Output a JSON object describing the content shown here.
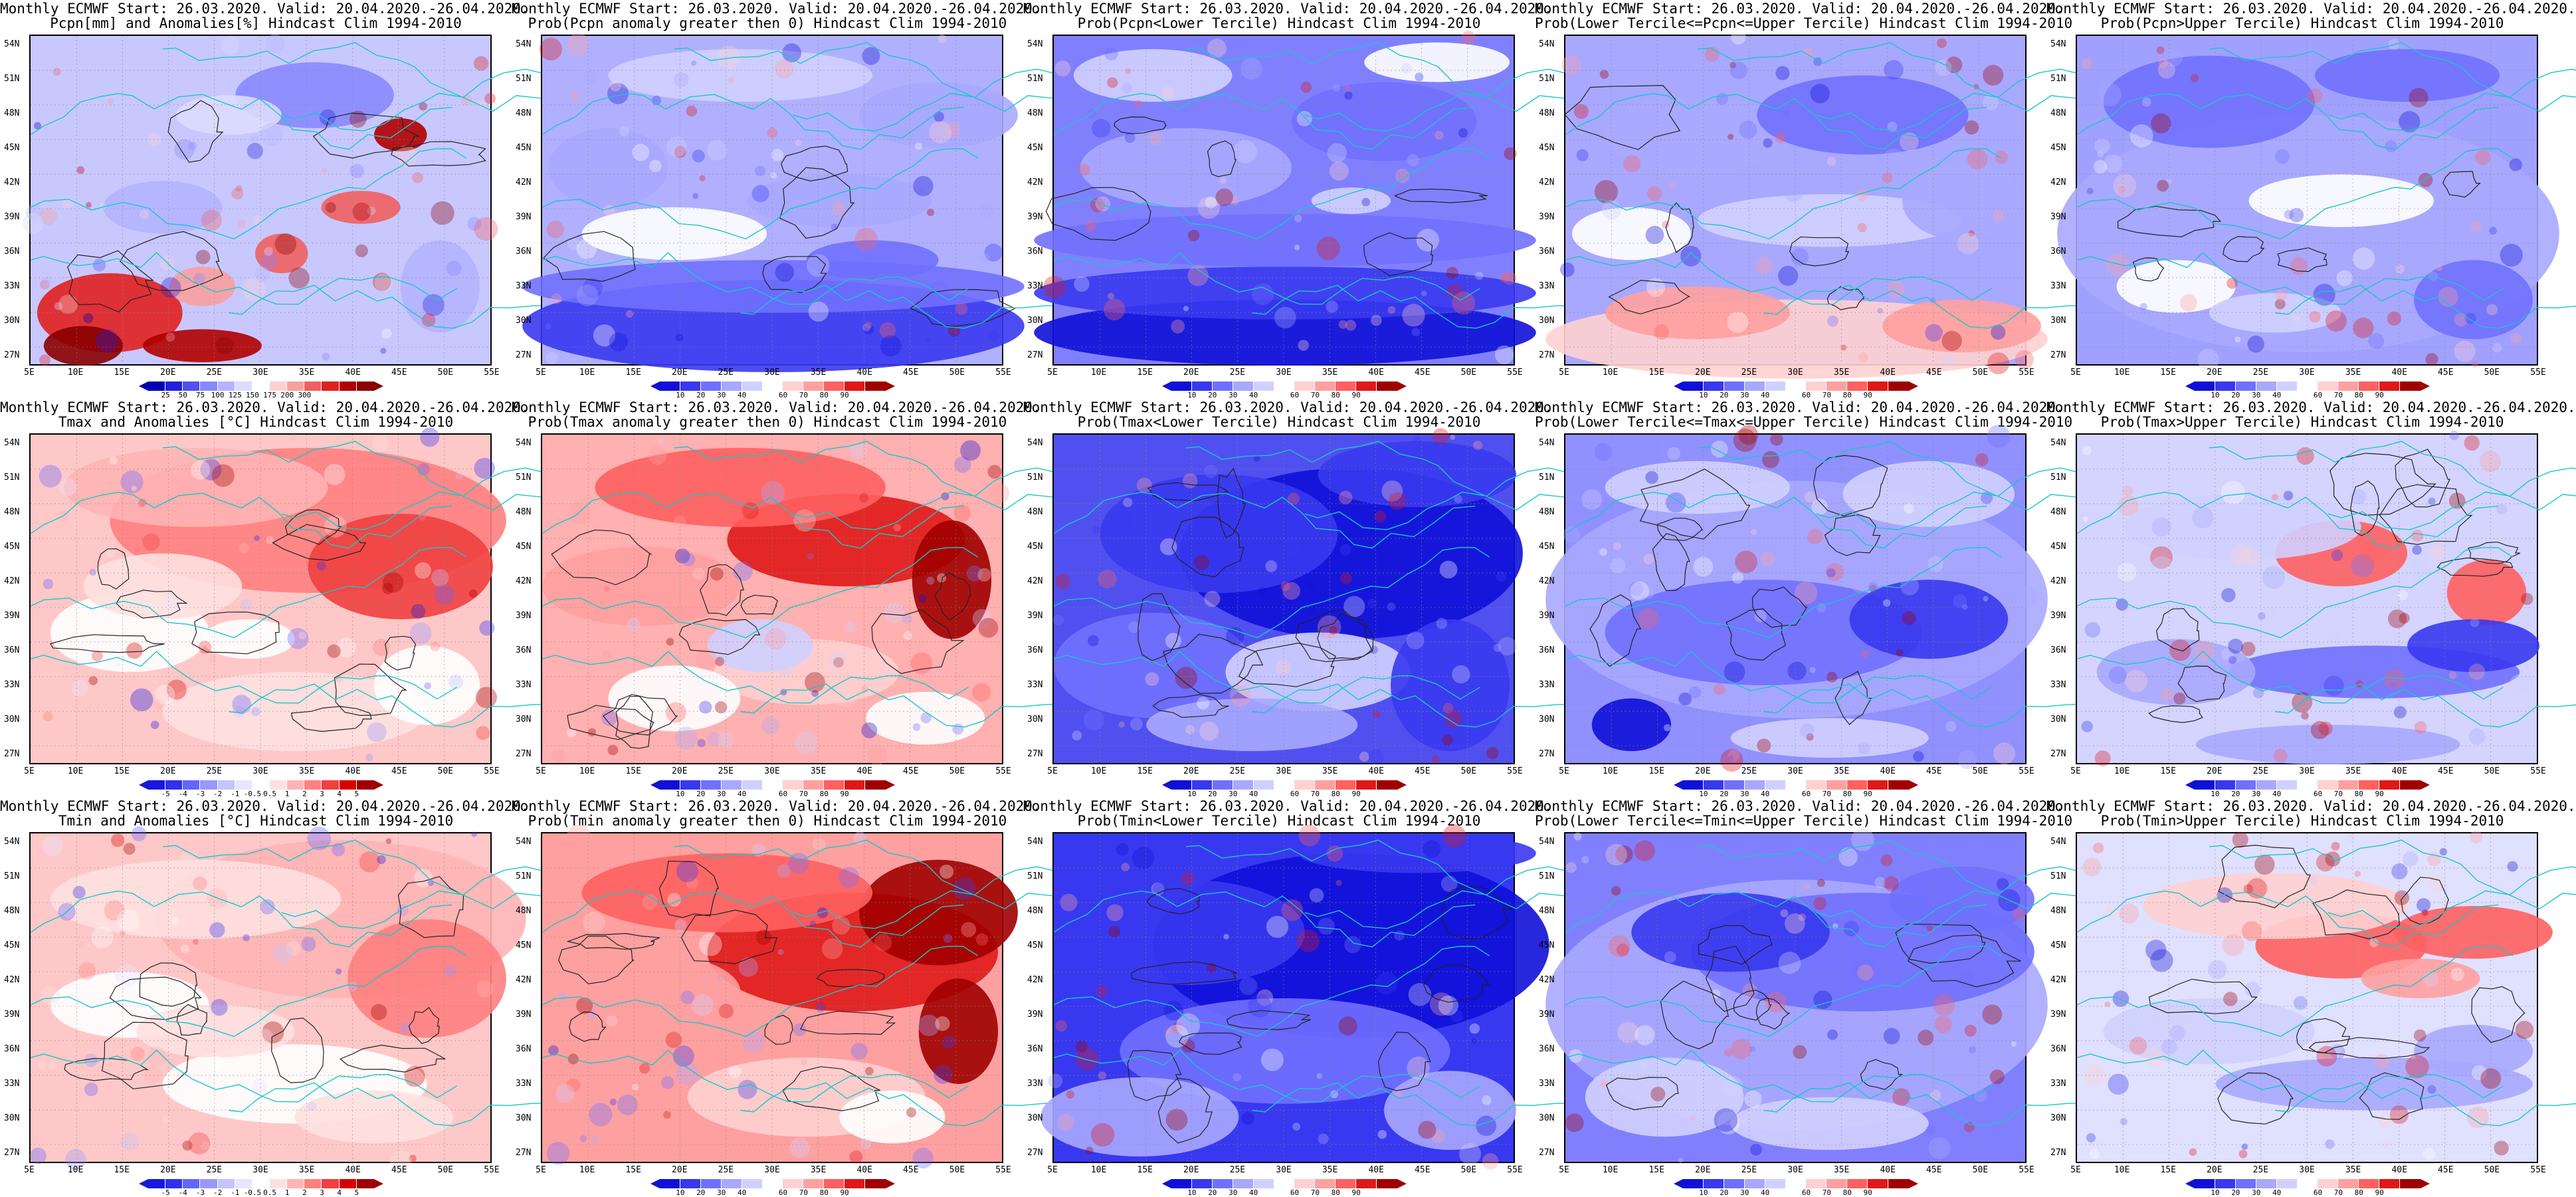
{
  "page": {
    "background": "#ffffff"
  },
  "lat_labels": [
    "54N",
    "51N",
    "48N",
    "45N",
    "42N",
    "39N",
    "36N",
    "33N",
    "30N",
    "27N"
  ],
  "lon_labels": [
    "5E",
    "10E",
    "15E",
    "20E",
    "25E",
    "30E",
    "35E",
    "40E",
    "45E",
    "50E",
    "55E"
  ],
  "palettes": {
    "precip": [
      "#8b0000",
      "#b00000",
      "#e02020",
      "#f06060",
      "#f8a0a0",
      "#fcd0d0",
      "#ffffff",
      "#dcdcff",
      "#b4b4ff",
      "#8888ff",
      "#5050f0",
      "#2020e0",
      "#0000b0"
    ],
    "anom": [
      "#1818e0",
      "#3030f0",
      "#6464ff",
      "#9898ff",
      "#c4c4ff",
      "#e6e6ff",
      "#ffffff",
      "#ffe0e0",
      "#ffb4b4",
      "#ff8080",
      "#f04040",
      "#d80000",
      "#a00000"
    ],
    "prob": [
      "#1010d8",
      "#3838f0",
      "#7070ff",
      "#a8a8ff",
      "#d0d0ff",
      "#ffffff",
      "#ffd0d0",
      "#ffa0a0",
      "#ff6060",
      "#e01818",
      "#a00000"
    ]
  },
  "panels": [
    {
      "id": "pcpn-anom",
      "title1": "Monthly ECMWF Start: 26.03.2020. Valid: 20.04.2020.-26.04.2020.",
      "title2": "Pcpn[mm] and Anomalies[%] Hindcast Clim 1994-2010",
      "palette": "precip",
      "labels": [
        "25",
        "50",
        "75",
        "100",
        "125",
        "150",
        "175",
        "200",
        "300"
      ],
      "field": "pcpn_anom",
      "bg": "#c8c8ff"
    },
    {
      "id": "pcpn-gt0",
      "title1": "Monthly ECMWF Start: 26.03.2020. Valid: 20.04.2020.-26.04.2020.",
      "title2": "Prob(Pcpn anomaly greater then 0) Hindcast Clim 1994-2010",
      "palette": "prob",
      "labels": [
        "10",
        "20",
        "30",
        "40",
        "60",
        "70",
        "80",
        "90"
      ],
      "field": "pcpn_prob",
      "bg": "#b0b0ff"
    },
    {
      "id": "pcpn-lower",
      "title1": "Monthly ECMWF Start: 26.03.2020. Valid: 20.04.2020.-26.04.2020.",
      "title2": "Prob(Pcpn<Lower Tercile) Hindcast Clim 1994-2010",
      "palette": "prob",
      "labels": [
        "10",
        "20",
        "30",
        "40",
        "60",
        "70",
        "80",
        "90"
      ],
      "field": "pcpn_lower",
      "bg": "#8080ff"
    },
    {
      "id": "pcpn-middle",
      "title1": "Monthly ECMWF Start: 26.03.2020. Valid: 20.04.2020.-26.04.2020.",
      "title2": "Prob(Lower Tercile<=Pcpn<=Upper Tercile) Hindcast Clim 1994-2010",
      "palette": "prob",
      "labels": [
        "10",
        "20",
        "30",
        "40",
        "60",
        "70",
        "80",
        "90"
      ],
      "field": "pcpn_mid",
      "bg": "#a8a8ff"
    },
    {
      "id": "pcpn-upper",
      "title1": "Monthly ECMWF Start: 26.03.2020. Valid: 20.04.2020.-26.04.2020.",
      "title2": "Prob(Pcpn>Upper Tercile) Hindcast Clim 1994-2010",
      "palette": "prob",
      "labels": [
        "10",
        "20",
        "30",
        "40",
        "60",
        "70",
        "80",
        "90"
      ],
      "field": "pcpn_upper",
      "bg": "#a0a0ff"
    },
    {
      "id": "tmax-anom",
      "title1": "Monthly ECMWF Start: 26.03.2020. Valid: 20.04.2020.-26.04.2020.",
      "title2": "Tmax and Anomalies [°C] Hindcast Clim 1994-2010",
      "palette": "anom",
      "labels": [
        "-5",
        "-4",
        "-3",
        "-2",
        "-1",
        "-0.5",
        "0.5",
        "1",
        "2",
        "3",
        "4",
        "5"
      ],
      "field": "tmax_anom",
      "bg": "#ffc8c8"
    },
    {
      "id": "tmax-gt0",
      "title1": "Monthly ECMWF Start: 26.03.2020. Valid: 20.04.2020.-26.04.2020.",
      "title2": "Prob(Tmax anomaly greater then 0) Hindcast Clim 1994-2010",
      "palette": "prob",
      "labels": [
        "10",
        "20",
        "30",
        "40",
        "60",
        "70",
        "80",
        "90"
      ],
      "field": "tmax_prob",
      "bg": "#ffb0b0"
    },
    {
      "id": "tmax-lower",
      "title1": "Monthly ECMWF Start: 26.03.2020. Valid: 20.04.2020.-26.04.2020.",
      "title2": "Prob(Tmax<Lower Tercile) Hindcast Clim 1994-2010",
      "palette": "prob",
      "labels": [
        "10",
        "20",
        "30",
        "40",
        "60",
        "70",
        "80",
        "90"
      ],
      "field": "tmax_lower",
      "bg": "#5050f0"
    },
    {
      "id": "tmax-middle",
      "title1": "Monthly ECMWF Start: 26.03.2020. Valid: 20.04.2020.-26.04.2020.",
      "title2": "Prob(Lower Tercile<=Tmax<=Upper Tercile) Hindcast Clim 1994-2010",
      "palette": "prob",
      "labels": [
        "10",
        "20",
        "30",
        "40",
        "60",
        "70",
        "80",
        "90"
      ],
      "field": "tmax_mid",
      "bg": "#9090ff"
    },
    {
      "id": "tmax-upper",
      "title1": "Monthly ECMWF Start: 26.03.2020. Valid: 20.04.2020.-26.04.2020.",
      "title2": "Prob(Tmax>Upper Tercile) Hindcast Clim 1994-2010",
      "palette": "prob",
      "labels": [
        "10",
        "20",
        "30",
        "40",
        "60",
        "70",
        "80",
        "90"
      ],
      "field": "tmax_upper",
      "bg": "#d4d4ff"
    },
    {
      "id": "tmin-anom",
      "title1": "Monthly ECMWF Start: 26.03.2020. Valid: 20.04.2020.-26.04.2020.",
      "title2": "Tmin and Anomalies [°C] Hindcast Clim 1994-2010",
      "palette": "anom",
      "labels": [
        "-5",
        "-4",
        "-3",
        "-2",
        "-1",
        "-0.5",
        "0.5",
        "1",
        "2",
        "3",
        "4",
        "5"
      ],
      "field": "tmin_anom",
      "bg": "#ffc8c8"
    },
    {
      "id": "tmin-gt0",
      "title1": "Monthly ECMWF Start: 26.03.2020. Valid: 20.04.2020.-26.04.2020.",
      "title2": "Prob(Tmin anomaly greater then 0) Hindcast Clim 1994-2010",
      "palette": "prob",
      "labels": [
        "10",
        "20",
        "30",
        "40",
        "60",
        "70",
        "80",
        "90"
      ],
      "field": "tmin_prob",
      "bg": "#ffa0a0"
    },
    {
      "id": "tmin-lower",
      "title1": "Monthly ECMWF Start: 26.03.2020. Valid: 20.04.2020.-26.04.2020.",
      "title2": "Prob(Tmin<Lower Tercile) Hindcast Clim 1994-2010",
      "palette": "prob",
      "labels": [
        "10",
        "20",
        "30",
        "40",
        "60",
        "70",
        "80",
        "90"
      ],
      "field": "tmin_lower",
      "bg": "#3838f0"
    },
    {
      "id": "tmin-middle",
      "title1": "Monthly ECMWF Start: 26.03.2020. Valid: 20.04.2020.-26.04.2020.",
      "title2": "Prob(Lower Tercile<=Tmin<=Upper Tercile) Hindcast Clim 1994-2010",
      "palette": "prob",
      "labels": [
        "10",
        "20",
        "30",
        "40",
        "60",
        "70",
        "80",
        "90"
      ],
      "field": "tmin_mid",
      "bg": "#8080ff"
    },
    {
      "id": "tmin-upper",
      "title1": "Monthly ECMWF Start: 26.03.2020. Valid: 20.04.2020.-26.04.2020.",
      "title2": "Prob(Tmin>Upper Tercile) Hindcast Clim 1994-2010",
      "palette": "prob",
      "labels": [
        "10",
        "20",
        "30",
        "40",
        "60",
        "70",
        "80",
        "90"
      ],
      "field": "tmin_upper",
      "bg": "#e0e0ff"
    }
  ]
}
